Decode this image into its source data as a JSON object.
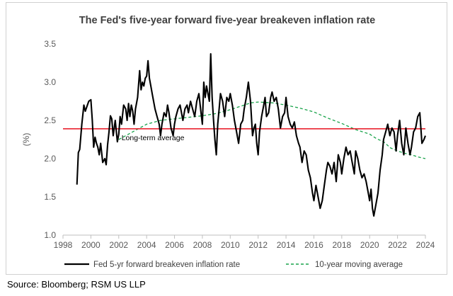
{
  "chart_data": {
    "type": "line",
    "title": "The Fed's five-year forward five-year breakeven inflation rate",
    "ylabel": "(%)",
    "xlabel": "",
    "xlim": [
      1998,
      2024
    ],
    "ylim": [
      1.0,
      3.5
    ],
    "x_ticks": [
      "1998",
      "2000",
      "2002",
      "2004",
      "2006",
      "2008",
      "2010",
      "2012",
      "2014",
      "2016",
      "2018",
      "2020",
      "2022",
      "2024"
    ],
    "y_ticks": [
      "1.0",
      "1.5",
      "2.0",
      "2.5",
      "3.0",
      "3.5"
    ],
    "reference_line": {
      "label": "Long-term average",
      "value": 2.39,
      "color": "#e8101e"
    },
    "series": [
      {
        "name": "Fed 5-yr forward breakeven inflation rate",
        "color": "#000000",
        "style": "solid",
        "x": [
          1999.0,
          1999.1,
          1999.2,
          1999.35,
          1999.5,
          1999.6,
          1999.75,
          1999.85,
          2000.0,
          2000.1,
          2000.2,
          2000.3,
          2000.4,
          2000.5,
          2000.6,
          2000.7,
          2000.85,
          2001.0,
          2001.1,
          2001.2,
          2001.3,
          2001.4,
          2001.5,
          2001.6,
          2001.75,
          2001.9,
          2002.0,
          2002.1,
          2002.2,
          2002.35,
          2002.5,
          2002.6,
          2002.7,
          2002.8,
          2002.9,
          2003.0,
          2003.1,
          2003.2,
          2003.35,
          2003.5,
          2003.6,
          2003.7,
          2003.8,
          2003.9,
          2004.0,
          2004.1,
          2004.2,
          2004.3,
          2004.4,
          2004.5,
          2004.6,
          2004.75,
          2004.9,
          2005.0,
          2005.1,
          2005.25,
          2005.4,
          2005.5,
          2005.6,
          2005.75,
          2005.9,
          2006.0,
          2006.1,
          2006.25,
          2006.4,
          2006.5,
          2006.6,
          2006.75,
          2006.9,
          2007.0,
          2007.15,
          2007.3,
          2007.45,
          2007.6,
          2007.75,
          2007.9,
          2008.0,
          2008.1,
          2008.2,
          2008.3,
          2008.4,
          2008.5,
          2008.6,
          2008.7,
          2008.8,
          2008.9,
          2009.0,
          2009.1,
          2009.2,
          2009.3,
          2009.45,
          2009.6,
          2009.75,
          2009.9,
          2010.0,
          2010.15,
          2010.3,
          2010.45,
          2010.6,
          2010.75,
          2010.9,
          2011.0,
          2011.15,
          2011.3,
          2011.45,
          2011.6,
          2011.7,
          2011.8,
          2011.9,
          2012.0,
          2012.1,
          2012.25,
          2012.4,
          2012.5,
          2012.6,
          2012.75,
          2012.9,
          2013.0,
          2013.15,
          2013.3,
          2013.45,
          2013.6,
          2013.75,
          2013.9,
          2014.0,
          2014.15,
          2014.3,
          2014.45,
          2014.6,
          2014.75,
          2014.9,
          2015.0,
          2015.15,
          2015.3,
          2015.45,
          2015.6,
          2015.75,
          2015.9,
          2016.0,
          2016.15,
          2016.3,
          2016.45,
          2016.6,
          2016.75,
          2016.9,
          2017.0,
          2017.15,
          2017.3,
          2017.45,
          2017.6,
          2017.75,
          2017.9,
          2018.0,
          2018.15,
          2018.3,
          2018.45,
          2018.6,
          2018.75,
          2018.9,
          2019.0,
          2019.15,
          2019.3,
          2019.45,
          2019.6,
          2019.75,
          2019.9,
          2020.0,
          2020.1,
          2020.2,
          2020.3,
          2020.45,
          2020.6,
          2020.75,
          2020.9,
          2021.0,
          2021.15,
          2021.3,
          2021.45,
          2021.6,
          2021.75,
          2021.9,
          2022.0,
          2022.15,
          2022.3,
          2022.45,
          2022.6,
          2022.75,
          2022.9,
          2023.0,
          2023.15,
          2023.3,
          2023.45,
          2023.6,
          2023.75,
          2023.9,
          2024.0
        ],
        "y": [
          1.66,
          2.08,
          2.12,
          2.45,
          2.7,
          2.62,
          2.7,
          2.75,
          2.77,
          2.5,
          2.15,
          2.28,
          2.2,
          2.15,
          2.05,
          2.2,
          1.95,
          2.0,
          1.92,
          2.18,
          2.35,
          2.56,
          2.52,
          2.3,
          2.5,
          2.22,
          2.32,
          2.55,
          2.45,
          2.7,
          2.65,
          2.5,
          2.72,
          2.55,
          2.7,
          2.62,
          2.45,
          2.65,
          2.8,
          3.15,
          2.9,
          3.0,
          2.95,
          3.05,
          3.08,
          3.28,
          3.05,
          2.95,
          2.85,
          2.75,
          2.65,
          2.55,
          2.45,
          2.3,
          2.45,
          2.6,
          2.55,
          2.7,
          2.6,
          2.4,
          2.3,
          2.45,
          2.55,
          2.65,
          2.7,
          2.6,
          2.5,
          2.65,
          2.7,
          2.6,
          2.75,
          2.65,
          2.55,
          2.75,
          2.85,
          2.6,
          2.45,
          3.0,
          2.8,
          2.95,
          2.85,
          2.75,
          3.37,
          2.8,
          2.5,
          2.25,
          2.05,
          2.45,
          2.65,
          2.85,
          2.75,
          2.55,
          2.8,
          2.75,
          2.85,
          2.7,
          2.5,
          2.35,
          2.2,
          2.45,
          2.5,
          2.65,
          2.8,
          3.0,
          2.75,
          2.3,
          2.4,
          2.45,
          2.2,
          2.05,
          2.35,
          2.55,
          2.7,
          2.8,
          2.55,
          2.6,
          2.8,
          2.87,
          2.75,
          2.8,
          2.65,
          2.4,
          2.55,
          2.6,
          2.8,
          2.55,
          2.45,
          2.4,
          2.48,
          2.3,
          2.2,
          2.15,
          1.95,
          2.1,
          2.05,
          1.85,
          1.75,
          1.55,
          1.45,
          1.65,
          1.5,
          1.35,
          1.45,
          1.65,
          1.85,
          1.95,
          1.9,
          1.8,
          1.95,
          1.7,
          2.05,
          1.95,
          1.8,
          2.0,
          2.15,
          2.05,
          2.1,
          1.95,
          1.8,
          2.1,
          2.0,
          1.85,
          1.75,
          1.8,
          1.7,
          1.55,
          1.45,
          1.6,
          1.35,
          1.25,
          1.4,
          1.55,
          1.85,
          2.05,
          2.25,
          2.35,
          2.45,
          2.3,
          2.4,
          2.35,
          2.1,
          2.3,
          2.5,
          2.2,
          2.05,
          2.4,
          2.2,
          2.05,
          2.15,
          2.35,
          2.4,
          2.55,
          2.6,
          2.2,
          2.25,
          2.3
        ]
      },
      {
        "name": "10-year moving average",
        "color": "#19a34a",
        "style": "dashed",
        "x": [
          2002.0,
          2003.0,
          2004.0,
          2005.0,
          2006.0,
          2007.0,
          2008.0,
          2009.0,
          2010.0,
          2011.0,
          2011.5,
          2012.0,
          2013.0,
          2014.0,
          2015.0,
          2016.0,
          2017.0,
          2018.0,
          2019.0,
          2020.0,
          2020.5,
          2021.0,
          2021.5,
          2022.0,
          2022.5,
          2023.0,
          2023.5,
          2024.0
        ],
        "y": [
          2.25,
          2.35,
          2.45,
          2.5,
          2.52,
          2.54,
          2.56,
          2.59,
          2.64,
          2.7,
          2.73,
          2.74,
          2.73,
          2.7,
          2.66,
          2.61,
          2.53,
          2.46,
          2.38,
          2.32,
          2.26,
          2.22,
          2.14,
          2.1,
          2.07,
          2.05,
          2.02,
          2.0
        ]
      }
    ]
  },
  "legend": {
    "items": [
      {
        "label": "Fed 5-yr forward breakeven inflation rate",
        "color": "#000000",
        "style": "solid"
      },
      {
        "label": "10-year moving average",
        "color": "#19a34a",
        "style": "dashed"
      }
    ]
  },
  "annotations": {
    "average_label": "Long-term average"
  },
  "source": "Source: Bloomberg; RSM US LLP"
}
